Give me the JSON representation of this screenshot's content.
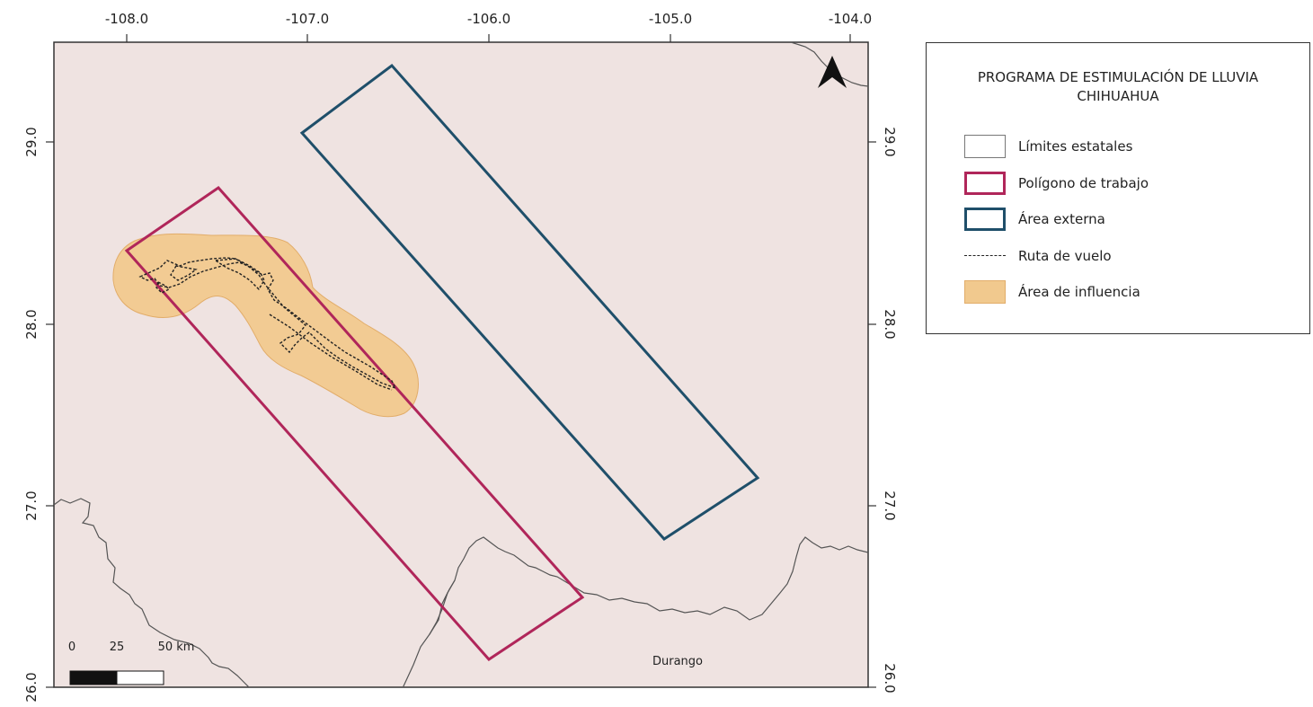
{
  "map": {
    "x_ticks": [
      "-108.0",
      "-107.0",
      "-106.0",
      "-105.0",
      "-104.0"
    ],
    "y_ticks_left": [
      "29.0",
      "28.0",
      "27.0",
      "26.0"
    ],
    "y_ticks_right": [
      "29.0",
      "28.0",
      "27.0",
      "26.0"
    ],
    "place_label": "Durango",
    "north_arrow": "north-arrow-icon",
    "scale_bar": {
      "labels": [
        "0",
        "25",
        "50 km"
      ]
    },
    "colors": {
      "background": "#efe3e1",
      "state_limits": "#555555",
      "poligono_de_trabajo": "#b0265a",
      "area_externa": "#1f4f6a",
      "area_de_influencia": "#f1c98e",
      "ruta_de_vuelo": "#222222"
    }
  },
  "legend": {
    "title_line1": "PROGRAMA DE ESTIMULACIÓN DE LLUVIA",
    "title_line2": "CHIHUAHUA",
    "items": [
      {
        "label": "Límites estatales"
      },
      {
        "label": "Polígono de trabajo"
      },
      {
        "label": "Área externa"
      },
      {
        "label": "Ruta de vuelo"
      },
      {
        "label": "Área de influencia"
      }
    ]
  }
}
